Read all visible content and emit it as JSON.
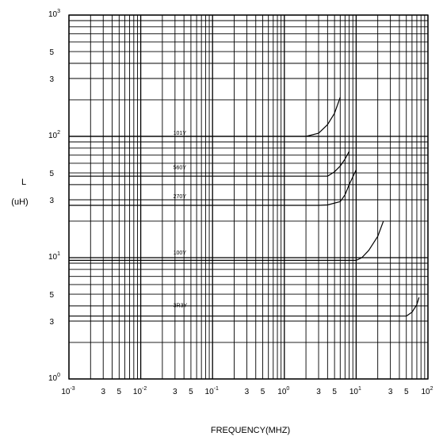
{
  "chart_data": {
    "type": "line",
    "xlabel": "FREQUENCY(MHZ)",
    "ylabel": "L",
    "yunit": "(uH)",
    "xscale": "log",
    "yscale": "log",
    "xlim": [
      0.001,
      100
    ],
    "ylim": [
      1,
      1000
    ],
    "grid": true,
    "x_ticks": [
      {
        "v": 0.001,
        "base": "10",
        "exp": "-3"
      },
      {
        "v": 0.003,
        "text": "3"
      },
      {
        "v": 0.005,
        "text": "5"
      },
      {
        "v": 0.01,
        "base": "10",
        "exp": "-2"
      },
      {
        "v": 0.03,
        "text": "3"
      },
      {
        "v": 0.05,
        "text": "5"
      },
      {
        "v": 0.1,
        "base": "10",
        "exp": "-1"
      },
      {
        "v": 0.3,
        "text": "3"
      },
      {
        "v": 0.5,
        "text": "5"
      },
      {
        "v": 1,
        "base": "10",
        "exp": "0"
      },
      {
        "v": 3,
        "text": "3"
      },
      {
        "v": 5,
        "text": "5"
      },
      {
        "v": 10,
        "base": "10",
        "exp": "1"
      },
      {
        "v": 30,
        "text": "3"
      },
      {
        "v": 50,
        "text": "5"
      },
      {
        "v": 100,
        "base": "10",
        "exp": "2"
      }
    ],
    "y_ticks": [
      {
        "v": 1,
        "base": "10",
        "exp": "0"
      },
      {
        "v": 3,
        "text": "3"
      },
      {
        "v": 5,
        "text": "5"
      },
      {
        "v": 10,
        "base": "10",
        "exp": "1"
      },
      {
        "v": 30,
        "text": "3"
      },
      {
        "v": 50,
        "text": "5"
      },
      {
        "v": 100,
        "base": "10",
        "exp": "2"
      },
      {
        "v": 300,
        "text": "3"
      },
      {
        "v": 500,
        "text": "5"
      },
      {
        "v": 1000,
        "base": "10",
        "exp": "3"
      }
    ],
    "series": [
      {
        "name": "101Y",
        "label_at": [
          0.025,
          100
        ],
        "x": [
          0.001,
          1,
          2,
          3,
          4,
          5,
          6
        ],
        "y": [
          100,
          100,
          100,
          106,
          125,
          155,
          210
        ]
      },
      {
        "name": "560Y",
        "label_at": [
          0.025,
          52
        ],
        "x": [
          0.001,
          2,
          4,
          5,
          6,
          7,
          8
        ],
        "y": [
          47,
          47,
          47,
          51,
          57,
          65,
          75
        ]
      },
      {
        "name": "270Y",
        "label_at": [
          0.025,
          30
        ],
        "x": [
          0.001,
          3,
          4,
          6,
          7,
          8,
          10
        ],
        "y": [
          27,
          27,
          27.2,
          29,
          33,
          40,
          53
        ]
      },
      {
        "name": "100Y",
        "label_at": [
          0.025,
          10.3
        ],
        "x": [
          0.001,
          5,
          10,
          12,
          15,
          20,
          24
        ],
        "y": [
          9.5,
          9.5,
          9.5,
          10,
          11.5,
          15,
          20
        ]
      },
      {
        "name": "3R3Y",
        "label_at": [
          0.025,
          3.8
        ],
        "x": [
          0.001,
          20,
          50,
          60,
          70,
          75
        ],
        "y": [
          3.3,
          3.3,
          3.3,
          3.55,
          4.1,
          4.7
        ]
      }
    ]
  }
}
